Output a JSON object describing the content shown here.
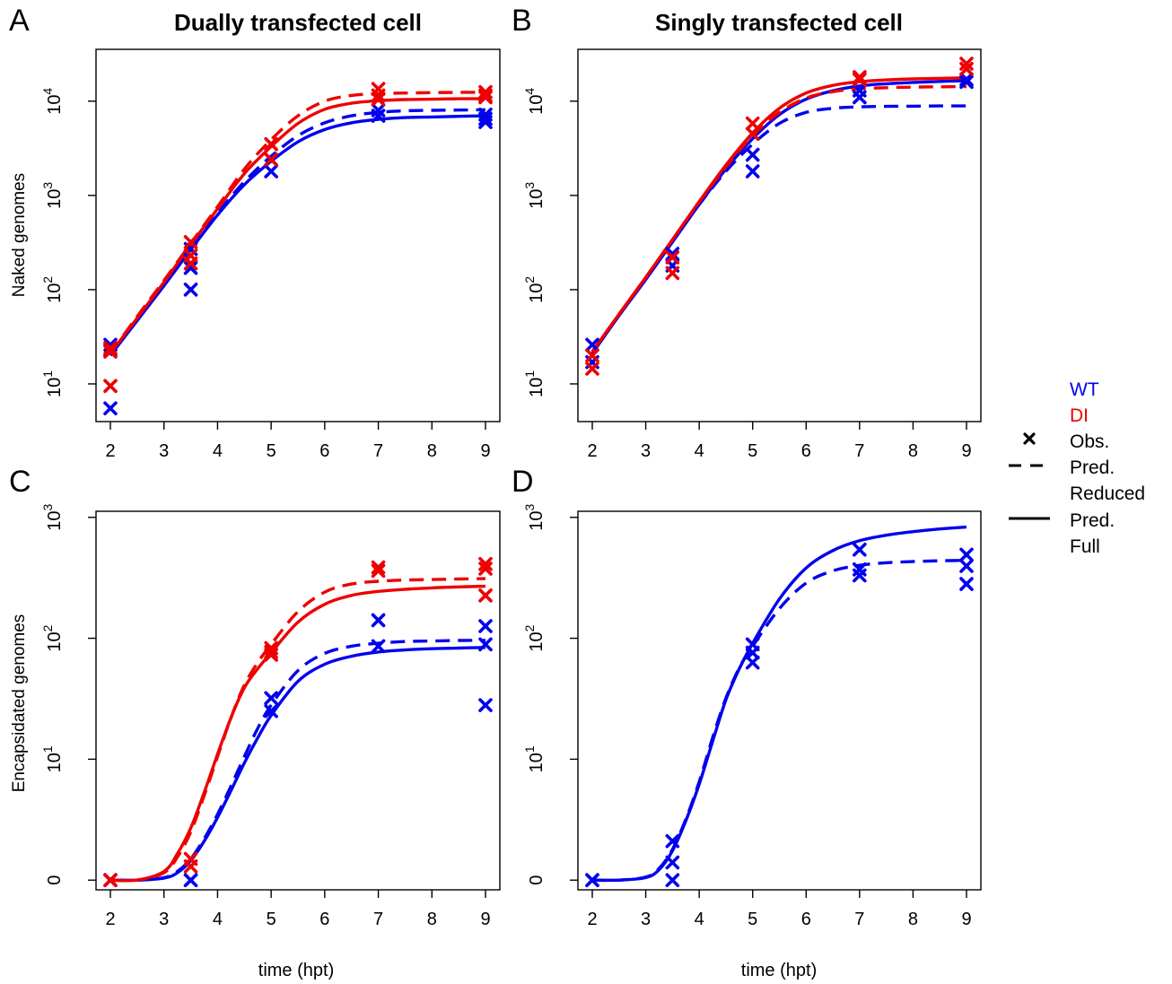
{
  "figure": {
    "panel_letters": [
      "A",
      "B",
      "C",
      "D"
    ],
    "legend": {
      "wt_label": "WT",
      "di_label": "DI",
      "obs_label": "Obs.",
      "pred_label": "Pred.",
      "reduced_label": "Reduced",
      "full_label": "Full",
      "wt_color": "#0000EE",
      "di_color": "#EE0000"
    }
  },
  "chart_data": [
    {
      "panel": "A",
      "type": "line",
      "title": "Dually transfected cell",
      "xlabel": "",
      "ylabel": "Naked genomes",
      "yscale": "log10",
      "x_range": [
        2,
        9
      ],
      "x_ticks": [
        "2",
        "3",
        "4",
        "5",
        "6",
        "7",
        "8",
        "9"
      ],
      "y_range_log10": [
        0.6,
        4.55
      ],
      "y_ticks": [
        {
          "label": "10^1",
          "exp": 1
        },
        {
          "label": "10^2",
          "exp": 2
        },
        {
          "label": "10^3",
          "exp": 3
        },
        {
          "label": "10^4",
          "exp": 4
        }
      ],
      "curves": [
        {
          "series": "WT",
          "model": "Reduced",
          "x": [
            2,
            2.5,
            3,
            3.5,
            4,
            4.5,
            5,
            5.5,
            6,
            6.5,
            7,
            7.5,
            8,
            8.5,
            9
          ],
          "y": [
            21,
            50,
            117,
            280,
            650,
            1400,
            2600,
            4300,
            5900,
            7000,
            7600,
            7900,
            8000,
            8050,
            8100
          ]
        },
        {
          "series": "WT",
          "model": "Full",
          "x": [
            2,
            2.5,
            3,
            3.5,
            4,
            4.5,
            5,
            5.5,
            6,
            6.5,
            7,
            7.5,
            8,
            8.5,
            9
          ],
          "y": [
            20,
            47,
            110,
            265,
            620,
            1300,
            2300,
            3700,
            5000,
            5900,
            6400,
            6700,
            6800,
            6900,
            7000
          ]
        },
        {
          "series": "DI",
          "model": "Reduced",
          "x": [
            2,
            2.5,
            3,
            3.5,
            4,
            4.5,
            5,
            5.5,
            6,
            6.5,
            7,
            7.5,
            8,
            8.5,
            9
          ],
          "y": [
            21,
            52,
            125,
            310,
            760,
            1900,
            3900,
            7000,
            10000,
            11500,
            12000,
            12200,
            12300,
            12400,
            12400
          ]
        },
        {
          "series": "DI",
          "model": "Full",
          "x": [
            2,
            2.5,
            3,
            3.5,
            4,
            4.5,
            5,
            5.5,
            6,
            6.5,
            7,
            7.5,
            8,
            8.5,
            9
          ],
          "y": [
            21,
            50,
            120,
            300,
            720,
            1700,
            3300,
            5800,
            8200,
            9500,
            10100,
            10400,
            10500,
            10600,
            10600
          ]
        }
      ],
      "observations": [
        {
          "series": "WT",
          "x": [
            2,
            2,
            2,
            3.5,
            3.5,
            3.5,
            5,
            5,
            7,
            7,
            9,
            9,
            9
          ],
          "y": [
            26,
            23,
            5.5,
            270,
            170,
            100,
            2400,
            1800,
            8000,
            7000,
            7200,
            6500,
            6000
          ]
        },
        {
          "series": "DI",
          "x": [
            2,
            2,
            2,
            3.5,
            3.5,
            3.5,
            5,
            5,
            7,
            7,
            7,
            9,
            9,
            9
          ],
          "y": [
            24,
            22,
            9.5,
            320,
            230,
            190,
            3500,
            2400,
            13500,
            11500,
            10500,
            12500,
            11500,
            11000
          ]
        }
      ]
    },
    {
      "panel": "B",
      "type": "line",
      "title": "Singly transfected cell",
      "xlabel": "",
      "ylabel": "",
      "yscale": "log10",
      "x_range": [
        2,
        9
      ],
      "x_ticks": [
        "2",
        "3",
        "4",
        "5",
        "6",
        "7",
        "8",
        "9"
      ],
      "y_range_log10": [
        0.6,
        4.55
      ],
      "y_ticks": [
        {
          "label": "10^1",
          "exp": 1
        },
        {
          "label": "10^2",
          "exp": 2
        },
        {
          "label": "10^3",
          "exp": 3
        },
        {
          "label": "10^4",
          "exp": 4
        }
      ],
      "curves": [
        {
          "series": "WT",
          "model": "Reduced",
          "x": [
            2,
            2.5,
            3,
            3.5,
            4,
            4.5,
            5,
            5.5,
            6,
            6.5,
            7,
            7.5,
            8,
            8.5,
            9
          ],
          "y": [
            22,
            54,
            130,
            330,
            800,
            1800,
            3500,
            5800,
            7600,
            8400,
            8700,
            8800,
            8850,
            8900,
            8900
          ]
        },
        {
          "series": "WT",
          "model": "Full",
          "x": [
            2,
            2.5,
            3,
            3.5,
            4,
            4.5,
            5,
            5.5,
            6,
            6.5,
            7,
            7.5,
            8,
            8.5,
            9
          ],
          "y": [
            21,
            53,
            128,
            320,
            800,
            1900,
            4000,
            7200,
            10500,
            12900,
            14500,
            15300,
            15800,
            16200,
            16500
          ]
        },
        {
          "series": "DI",
          "model": "Reduced",
          "x": [
            2,
            2.5,
            3,
            3.5,
            4,
            4.5,
            5,
            5.5,
            6,
            6.5,
            7,
            7.5,
            8,
            8.5,
            9
          ],
          "y": [
            22,
            55,
            135,
            340,
            850,
            2000,
            4300,
            7600,
            10800,
            12600,
            13500,
            13900,
            14100,
            14200,
            14300
          ]
        },
        {
          "series": "DI",
          "model": "Full",
          "x": [
            2,
            2.5,
            3,
            3.5,
            4,
            4.5,
            5,
            5.5,
            6,
            6.5,
            7,
            7.5,
            8,
            8.5,
            9
          ],
          "y": [
            22,
            55,
            135,
            340,
            860,
            2100,
            4600,
            8400,
            12200,
            14700,
            16100,
            16800,
            17200,
            17500,
            17700
          ]
        }
      ],
      "observations": [
        {
          "series": "WT",
          "x": [
            2,
            2,
            3.5,
            3.5,
            5,
            5,
            7,
            7,
            9,
            9
          ],
          "y": [
            26,
            17,
            240,
            180,
            2700,
            1800,
            13000,
            11000,
            17000,
            16000
          ]
        },
        {
          "series": "DI",
          "x": [
            2,
            2,
            3.5,
            3.5,
            5,
            5,
            7,
            7,
            9,
            9
          ],
          "y": [
            20,
            14.5,
            220,
            150,
            5800,
            4500,
            18000,
            17000,
            25000,
            22000
          ]
        }
      ]
    },
    {
      "panel": "C",
      "type": "line",
      "title": "",
      "xlabel": "time (hpt)",
      "ylabel": "Encapsidated genomes",
      "yscale": "log10(1+y)",
      "x_range": [
        2,
        9
      ],
      "x_ticks": [
        "2",
        "3",
        "4",
        "5",
        "6",
        "7",
        "8",
        "9"
      ],
      "y_range_log10": [
        -0.08,
        3.05
      ],
      "y_ticks": [
        {
          "label": "0",
          "exp": 0
        },
        {
          "label": "10^1",
          "exp": 1
        },
        {
          "label": "10^2",
          "exp": 2
        },
        {
          "label": "10^3",
          "exp": 3
        }
      ],
      "curves": [
        {
          "series": "WT",
          "model": "Reduced",
          "x": [
            2,
            2.5,
            3,
            3.25,
            3.5,
            3.75,
            4,
            4.25,
            4.5,
            4.75,
            5,
            5.5,
            6,
            6.5,
            7,
            7.5,
            8,
            8.5,
            9
          ],
          "y": [
            0,
            0.001,
            0.05,
            0.18,
            0.5,
            1.2,
            2.5,
            5,
            9.5,
            17,
            27,
            53,
            74,
            85,
            90,
            93,
            94,
            95,
            95
          ]
        },
        {
          "series": "WT",
          "model": "Full",
          "x": [
            2,
            2.5,
            3,
            3.25,
            3.5,
            3.75,
            4,
            4.25,
            4.5,
            4.75,
            5,
            5.5,
            6,
            6.5,
            7,
            7.5,
            8,
            8.5,
            9
          ],
          "y": [
            0,
            0.001,
            0.04,
            0.15,
            0.45,
            1.1,
            2.3,
            4.5,
            8.3,
            14,
            22,
            43,
            60,
            70,
            76,
            79,
            81,
            82,
            83
          ]
        },
        {
          "series": "DI",
          "model": "Reduced",
          "x": [
            2,
            2.5,
            3,
            3.25,
            3.5,
            3.75,
            4,
            4.25,
            4.5,
            4.75,
            5,
            5.5,
            6,
            6.5,
            7,
            7.5,
            8,
            8.5,
            9
          ],
          "y": [
            0,
            0.002,
            0.15,
            0.55,
            1.5,
            4,
            9.5,
            21,
            40,
            62,
            88,
            165,
            240,
            280,
            295,
            302,
            305,
            308,
            310
          ]
        },
        {
          "series": "DI",
          "model": "Full",
          "x": [
            2,
            2.5,
            3,
            3.25,
            3.5,
            3.75,
            4,
            4.25,
            4.5,
            4.75,
            5,
            5.5,
            6,
            6.5,
            7,
            7.5,
            8,
            8.5,
            9
          ],
          "y": [
            0,
            0.002,
            0.18,
            0.65,
            1.7,
            4.3,
            10,
            21,
            38,
            55,
            75,
            135,
            190,
            225,
            243,
            253,
            260,
            265,
            268
          ]
        }
      ],
      "observations": [
        {
          "series": "WT",
          "x": [
            2,
            2,
            3.5,
            3.5,
            5,
            5,
            7,
            7,
            9,
            9,
            9
          ],
          "y": [
            0,
            0,
            0,
            0,
            31,
            24,
            140,
            85,
            125,
            88,
            27
          ]
        },
        {
          "series": "DI",
          "x": [
            2,
            2,
            3.5,
            3.5,
            5,
            5,
            5,
            7,
            7,
            9,
            9,
            9
          ],
          "y": [
            0,
            0,
            0.5,
            0.3,
            82,
            76,
            72,
            385,
            360,
            410,
            375,
            225
          ]
        }
      ]
    },
    {
      "panel": "D",
      "type": "line",
      "title": "",
      "xlabel": "time (hpt)",
      "ylabel": "",
      "yscale": "log10(1+y)",
      "x_range": [
        2,
        9
      ],
      "x_ticks": [
        "2",
        "3",
        "4",
        "5",
        "6",
        "7",
        "8",
        "9"
      ],
      "y_range_log10": [
        -0.08,
        3.05
      ],
      "y_ticks": [
        {
          "label": "0",
          "exp": 0
        },
        {
          "label": "10^1",
          "exp": 1
        },
        {
          "label": "10^2",
          "exp": 2
        },
        {
          "label": "10^3",
          "exp": 3
        }
      ],
      "curves": [
        {
          "series": "WT",
          "model": "Reduced",
          "x": [
            2,
            2.5,
            3,
            3.25,
            3.5,
            3.75,
            4,
            4.25,
            4.5,
            4.75,
            5,
            5.5,
            6,
            6.5,
            7,
            7.5,
            8,
            8.5,
            9
          ],
          "y": [
            0,
            0.001,
            0.06,
            0.25,
            0.8,
            2.2,
            5.5,
            14,
            31,
            56,
            85,
            175,
            285,
            360,
            400,
            420,
            430,
            436,
            440
          ]
        },
        {
          "series": "WT",
          "model": "Full",
          "x": [
            2,
            2.5,
            3,
            3.25,
            3.5,
            3.75,
            4,
            4.25,
            4.5,
            4.75,
            5,
            5.5,
            6,
            6.5,
            7,
            7.5,
            8,
            8.5,
            9
          ],
          "y": [
            0,
            0.001,
            0.05,
            0.22,
            0.75,
            2.1,
            5.2,
            13,
            30,
            55,
            90,
            210,
            380,
            530,
            640,
            710,
            760,
            800,
            830
          ]
        }
      ],
      "observations": [
        {
          "series": "WT",
          "x": [
            2,
            2,
            3.5,
            3.5,
            3.5,
            5,
            5,
            5,
            7,
            7,
            7,
            9,
            9,
            9
          ],
          "y": [
            0,
            0,
            1.1,
            0.4,
            0,
            88,
            75,
            62,
            540,
            370,
            330,
            490,
            395,
            280
          ]
        }
      ]
    }
  ]
}
